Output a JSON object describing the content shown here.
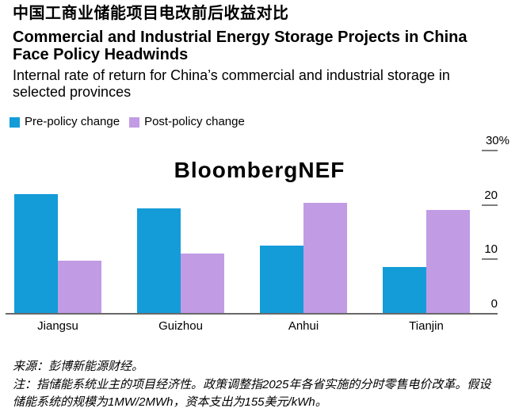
{
  "chart_data": {
    "type": "bar",
    "title_zh": "中国工商业储能项目电改前后收益对比",
    "title": "Commercial and Industrial Energy Storage Projects in China Face Policy Headwinds",
    "subtitle": "Internal rate of return for China’s commercial and industrial storage in selected provinces",
    "categories": [
      "Jiangsu",
      "Guizhou",
      "Anhui",
      "Tianjin"
    ],
    "series": [
      {
        "name": "Pre-policy change",
        "color": "#149CD8",
        "values": [
          21.8,
          19.2,
          12.4,
          8.5
        ]
      },
      {
        "name": "Post-policy change",
        "color": "#C19CE5",
        "values": [
          9.6,
          11.0,
          20.2,
          19.0
        ]
      }
    ],
    "ylim": [
      0,
      30
    ],
    "yticks": [
      {
        "value": 0,
        "label": "0"
      },
      {
        "value": 10,
        "label": "10"
      },
      {
        "value": 20,
        "label": "20"
      },
      {
        "value": 30,
        "label": "30%"
      }
    ],
    "grid": false,
    "legend_position": "top-left",
    "watermark": "BloombergNEF",
    "axis_color": "#696969",
    "source": "来源：彭博新能源财经。",
    "note": "注：指储能系统业主的项目经济性。政策调整指2025年各省实施的分时零售电价改革。假设储能系统的规模为1MW/2MWh，资本支出为155美元/kWh。"
  }
}
